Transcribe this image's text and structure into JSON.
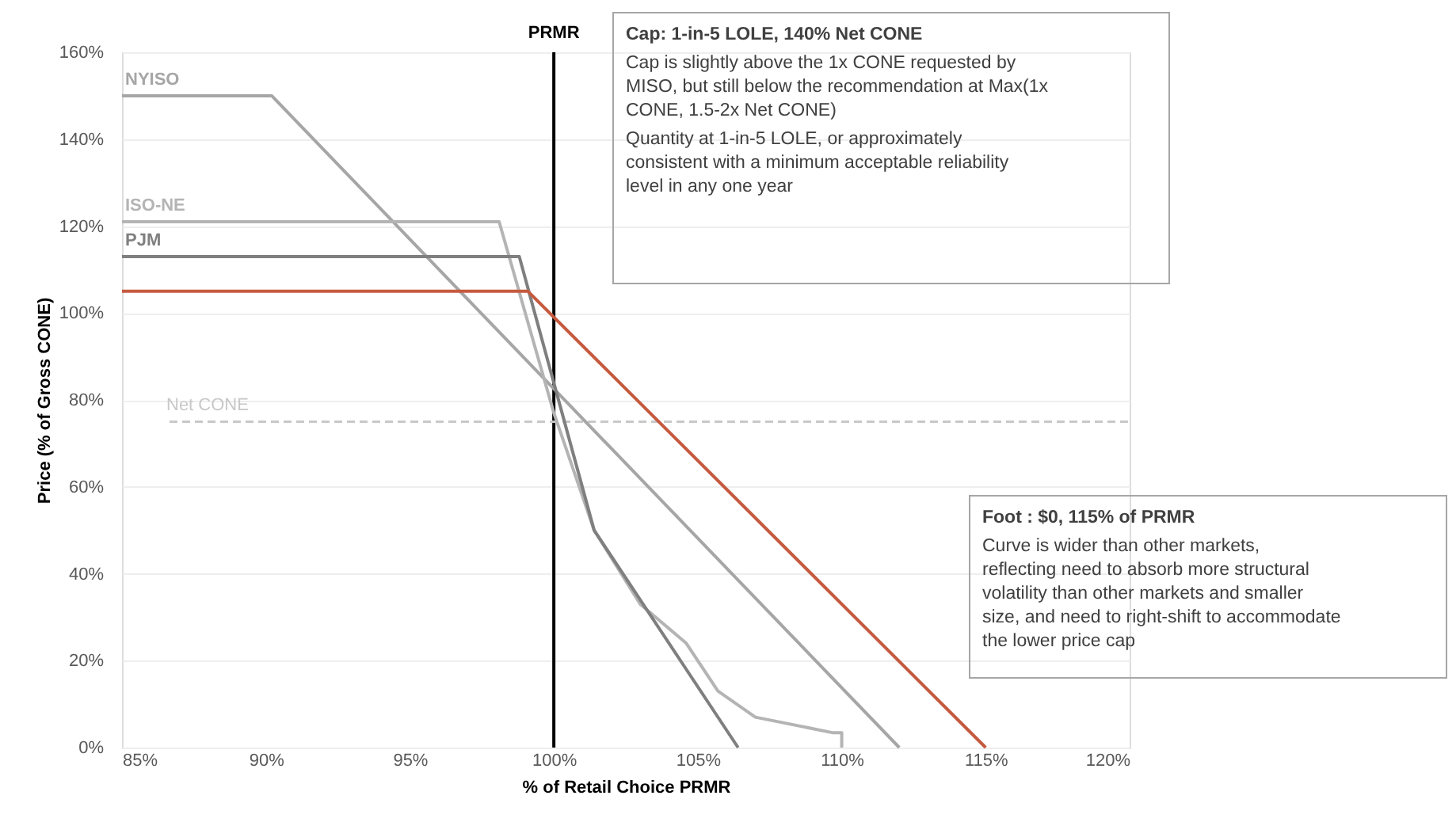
{
  "chart_data": {
    "type": "line",
    "xlabel": "% of Retail Choice PRMR",
    "ylabel": "Price (% of Gross CONE)",
    "xlim": [
      85,
      120
    ],
    "ylim": [
      0,
      160
    ],
    "xticks": [
      {
        "value": 85,
        "label": "85%"
      },
      {
        "value": 90,
        "label": "90%"
      },
      {
        "value": 95,
        "label": "95%"
      },
      {
        "value": 100,
        "label": "100%"
      },
      {
        "value": 105,
        "label": "105%"
      },
      {
        "value": 110,
        "label": "110%"
      },
      {
        "value": 115,
        "label": "115%"
      },
      {
        "value": 120,
        "label": "120%"
      }
    ],
    "yticks": [
      {
        "value": 0,
        "label": "0%"
      },
      {
        "value": 20,
        "label": "20%"
      },
      {
        "value": 40,
        "label": "40%"
      },
      {
        "value": 60,
        "label": "60%"
      },
      {
        "value": 80,
        "label": "80%"
      },
      {
        "value": 100,
        "label": "100%"
      },
      {
        "value": 120,
        "label": "120%"
      },
      {
        "value": 140,
        "label": "140%"
      },
      {
        "value": 160,
        "label": "160%"
      }
    ],
    "grid": "y",
    "legend": false,
    "marker": "none",
    "line_style": "solid",
    "series": [
      {
        "name": "NYISO",
        "color": "#a6a6a6",
        "x": [
          85,
          90.2,
          112
        ],
        "values": [
          150,
          150,
          0
        ]
      },
      {
        "name": "ISO-NE",
        "color": "#b4b4b4",
        "x": [
          85,
          98.1,
          100,
          101.4,
          103,
          104.6,
          105.7,
          107,
          109.7,
          110,
          110
        ],
        "values": [
          121,
          121,
          77,
          50,
          33,
          24,
          13,
          7,
          3.4,
          3.4,
          0
        ]
      },
      {
        "name": "PJM",
        "color": "#7f7f7f",
        "x": [
          85,
          98.8,
          101.4,
          106.4
        ],
        "values": [
          113,
          113,
          50,
          0
        ]
      },
      {
        "color": "#c55a3f",
        "x": [
          85,
          99.1,
          115
        ],
        "values": [
          105,
          105,
          0
        ]
      }
    ],
    "ref_lines": [
      {
        "axis": "x",
        "value": 100,
        "label": "PRMR",
        "color": "#000000",
        "line_style": "solid"
      },
      {
        "axis": "y",
        "value": 75,
        "label": "Net CONE",
        "color": "#c8c8c8",
        "line_style": "dashed"
      }
    ],
    "annotations": [
      "Cap: 1-in-5 LOLE, 140% Net CONE",
      "Cap is slightly above the 1x CONE requested by MISO, but still below the recommendation at Max(1x CONE, 1.5-2x Net CONE)",
      "Quantity at 1-in-5 LOLE, or approximately consistent with a minimum acceptable reliability level in any one year",
      "Foot : $0, 115% of PRMR",
      "Curve is wider than other markets, reflecting need to absorb more structural volatility than other markets and smaller size, and need to right-shift to accommodate the lower price cap"
    ]
  }
}
